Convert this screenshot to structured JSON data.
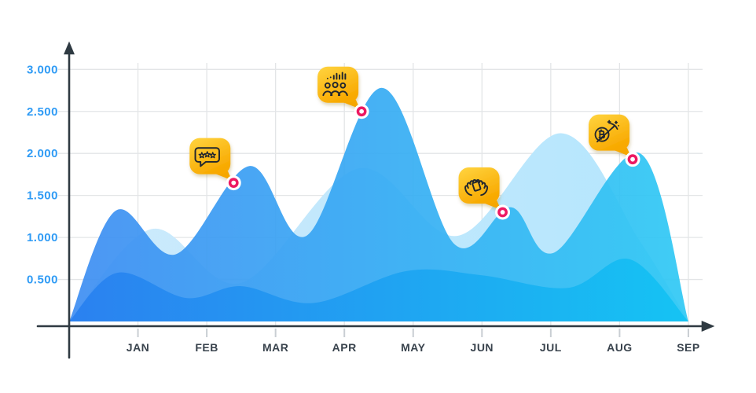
{
  "chart_data": {
    "type": "area",
    "title": "",
    "xlabel": "",
    "ylabel": "",
    "grid": true,
    "legend": "none",
    "x_axis": {
      "categories": [
        "JAN",
        "FEB",
        "MAR",
        "APR",
        "MAY",
        "JUN",
        "JUL",
        "AUG",
        "SEP"
      ],
      "positions": [
        1,
        2,
        3,
        4,
        5,
        6,
        7,
        8,
        9
      ]
    },
    "y_axis": {
      "tick_labels": [
        "0.500",
        "1.000",
        "1.500",
        "2.000",
        "2.500",
        "3.000"
      ],
      "tick_values": [
        0.5,
        1.0,
        1.5,
        2.0,
        2.5,
        3.0
      ],
      "ylim": [
        0,
        3.2
      ]
    },
    "series": [
      {
        "name": "background-light-wave",
        "color_left": "#cdeafc",
        "color_right": "#b4e6fd",
        "opacity": 1,
        "points": [
          [
            0,
            0
          ],
          [
            1.2,
            1.1
          ],
          [
            2.5,
            0.46
          ],
          [
            4.2,
            1.82
          ],
          [
            5.65,
            1.02
          ],
          [
            7.15,
            2.24
          ],
          [
            8.3,
            0.95
          ],
          [
            9,
            0
          ]
        ]
      },
      {
        "name": "middle-blue-wave",
        "color_left": "#3e8df2",
        "color_right": "#2fc9f4",
        "opacity": 0.92,
        "points": [
          [
            0,
            0
          ],
          [
            0.68,
            1.32
          ],
          [
            1.55,
            0.8
          ],
          [
            2.62,
            1.85
          ],
          [
            3.45,
            1.02
          ],
          [
            4.55,
            2.78
          ],
          [
            5.6,
            0.92
          ],
          [
            6.42,
            1.36
          ],
          [
            7.05,
            0.82
          ],
          [
            8.3,
            2.0
          ],
          [
            9,
            0
          ]
        ]
      },
      {
        "name": "front-dark-wave",
        "color_left": "#2a80f0",
        "color_right": "#14c3f3",
        "opacity": 0.97,
        "points": [
          [
            0,
            0
          ],
          [
            0.7,
            0.58
          ],
          [
            1.7,
            0.28
          ],
          [
            2.5,
            0.42
          ],
          [
            3.55,
            0.22
          ],
          [
            4.9,
            0.6
          ],
          [
            6.0,
            0.55
          ],
          [
            7.25,
            0.4
          ],
          [
            8.15,
            0.74
          ],
          [
            9,
            0
          ]
        ]
      }
    ],
    "annotations": [
      {
        "name": "reviews-callout",
        "icon": "rating-stars-chat-icon",
        "near_month": "FEB",
        "x": 2.39,
        "value": 1.65
      },
      {
        "name": "team-results-callout",
        "icon": "team-statistics-icon",
        "near_month": "APR",
        "x": 4.25,
        "value": 2.5
      },
      {
        "name": "care-hands-callout",
        "icon": "hold-hands-icon",
        "near_month": "JUN",
        "x": 6.3,
        "value": 1.3
      },
      {
        "name": "bitcoin-mining-callout",
        "icon": "bitcoin-mining-icon",
        "near_month": "AUG",
        "x": 8.19,
        "value": 1.93
      }
    ],
    "colors": {
      "axis": "#2f3a42",
      "grid": "#e3e5e7",
      "tick": "#c9ced3",
      "y_label": "#2f9bf5",
      "x_label": "#39434d",
      "bubble_top": "#ffd440",
      "bubble_bottom": "#f8a900",
      "bubble_tail": "#f5a602",
      "marker_ring": "#ed1962",
      "marker_halo": "#ffffff",
      "icon_stroke": "#20282e"
    }
  }
}
